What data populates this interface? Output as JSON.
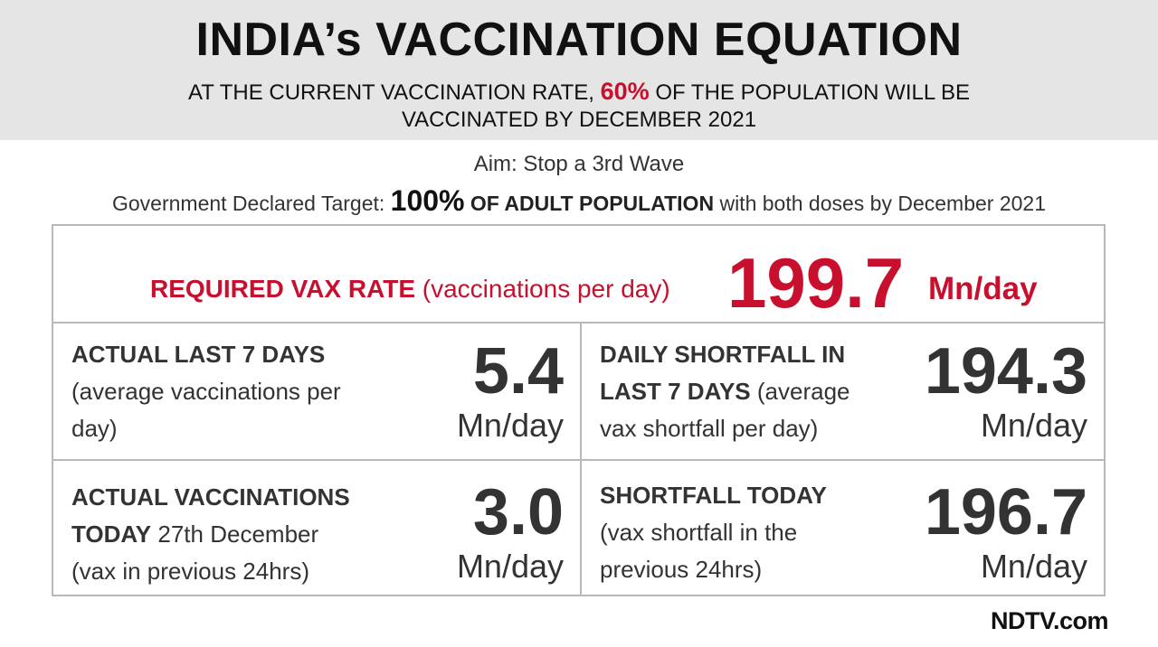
{
  "header": {
    "title": "INDIA’s VACCINATION EQUATION",
    "subtitle_pre": "AT THE CURRENT VACCINATION RATE,",
    "subtitle_pct": "60%",
    "subtitle_post": "OF THE POPULATION WILL BE VACCINATED BY DECEMBER 2021"
  },
  "aim": "Aim: Stop a 3rd Wave",
  "target": {
    "prefix": "Government Declared Target:",
    "pct": "100%",
    "population": "OF ADULT POPULATION",
    "suffix": "with both doses by December 2021"
  },
  "required": {
    "label_bold": "REQUIRED VAX RATE",
    "label_rest": "(vaccinations per day)",
    "value": "199.7",
    "unit": "Mn/day"
  },
  "cells": [
    {
      "title": "ACTUAL LAST 7 DAYS",
      "desc": "(average vaccinations per day)",
      "value": "5.4",
      "unit": "Mn/day"
    },
    {
      "title": "DAILY SHORTFALL IN LAST 7 DAYS",
      "desc": "(average vax shortfall per day)",
      "value": "194.3",
      "unit": "Mn/day"
    },
    {
      "title": "ACTUAL VACCINATIONS TODAY",
      "date": "27th December",
      "desc": "(vax in previous 24hrs)",
      "value": "3.0",
      "unit": "Mn/day"
    },
    {
      "title": "SHORTFALL TODAY",
      "desc": "(vax shortfall in the previous 24hrs)",
      "value": "196.7",
      "unit": "Mn/day"
    }
  ],
  "logo": "NDTV.com"
}
